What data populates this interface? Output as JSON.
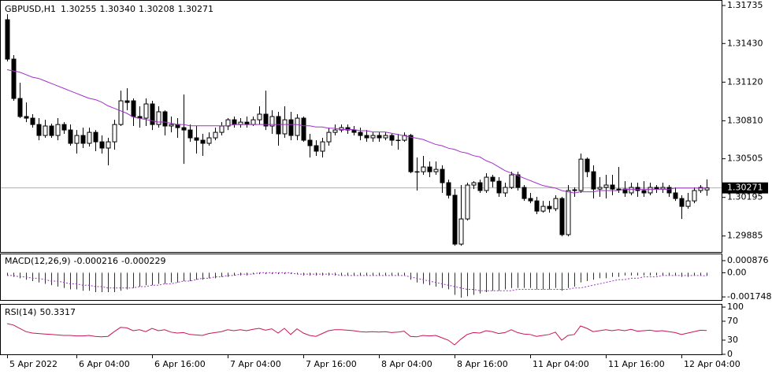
{
  "chart_data": {
    "type": "candlestick",
    "symbol": "GBPUSD,H1",
    "ohlc_labels": [
      "1.30255",
      "1.30340",
      "1.30208",
      "1.30271"
    ],
    "bull_color": "#ffffff",
    "bear_color": "#000000",
    "ma_color": "#a030c8",
    "ylim": [
      1.29757,
      1.31773
    ],
    "yticks": [
      1.31735,
      {
        "value": 1.3143,
        "label": "1.31430"
      },
      {
        "value": 1.3112,
        "label": "1.31120"
      },
      {
        "value": 1.3081,
        "label": "1.30810"
      },
      1.30505,
      1.30195,
      1.29885
    ],
    "xticks": [
      {
        "value": 0,
        "label": "5 Apr 2022"
      },
      {
        "value": 11,
        "label": "6 Apr 04:00"
      },
      {
        "value": 23,
        "label": "6 Apr 16:00"
      },
      {
        "value": 35,
        "label": "7 Apr 04:00"
      },
      {
        "value": 47,
        "label": "7 Apr 16:00"
      },
      {
        "value": 59,
        "label": "8 Apr 04:00"
      },
      {
        "value": 71,
        "label": "8 Apr 16:00"
      },
      {
        "value": 83,
        "label": "11 Apr 04:00"
      },
      {
        "value": 95,
        "label": "11 Apr 16:00"
      },
      {
        "value": 107,
        "label": "12 Apr 04:00"
      }
    ],
    "candles": [
      [
        1.31621,
        1.31665,
        1.31286,
        1.31305
      ],
      [
        1.31305,
        1.31337,
        1.3097,
        1.30989
      ],
      [
        1.30989,
        1.31115,
        1.30831,
        1.30844
      ],
      [
        1.30844,
        1.30957,
        1.30799,
        1.30831
      ],
      [
        1.30831,
        1.30863,
        1.30755,
        1.3078
      ],
      [
        1.3078,
        1.30831,
        1.30654,
        1.30692
      ],
      [
        1.30692,
        1.30818,
        1.30673,
        1.30768
      ],
      [
        1.30768,
        1.30787,
        1.30673,
        1.30692
      ],
      [
        1.30692,
        1.30831,
        1.30654,
        1.3078
      ],
      [
        1.3078,
        1.30799,
        1.30705,
        1.30736
      ],
      [
        1.30736,
        1.3078,
        1.3061,
        1.30629
      ],
      [
        1.30629,
        1.30736,
        1.30547,
        1.30692
      ],
      [
        1.30692,
        1.30755,
        1.30591,
        1.30629
      ],
      [
        1.30629,
        1.30755,
        1.30603,
        1.30717
      ],
      [
        1.30717,
        1.30736,
        1.30566,
        1.30641
      ],
      [
        1.30641,
        1.30692,
        1.30547,
        1.30591
      ],
      [
        1.30591,
        1.30673,
        1.30452,
        1.30641
      ],
      [
        1.30641,
        1.30818,
        1.30578,
        1.3078
      ],
      [
        1.3078,
        1.31052,
        1.30768,
        1.3097
      ],
      [
        1.3097,
        1.31071,
        1.30894,
        1.30957
      ],
      [
        1.3097,
        1.30989,
        1.30768,
        1.30844
      ],
      [
        1.30844,
        1.30926,
        1.30755,
        1.30831
      ],
      [
        1.30831,
        1.30989,
        1.30768,
        1.30945
      ],
      [
        1.30945,
        1.3097,
        1.30736,
        1.3078
      ],
      [
        1.3078,
        1.30926,
        1.30755,
        1.30882
      ],
      [
        1.30882,
        1.30894,
        1.30692,
        1.30768
      ],
      [
        1.30768,
        1.30844,
        1.30717,
        1.3078
      ],
      [
        1.3078,
        1.30831,
        1.30673,
        1.30755
      ],
      [
        1.30755,
        1.31021,
        1.30464,
        1.30736
      ],
      [
        1.30736,
        1.3078,
        1.30641,
        1.30673
      ],
      [
        1.30673,
        1.30768,
        1.30547,
        1.30654
      ],
      [
        1.30654,
        1.30705,
        1.30528,
        1.30629
      ],
      [
        1.30629,
        1.30717,
        1.3061,
        1.30673
      ],
      [
        1.30673,
        1.30755,
        1.30654,
        1.30717
      ],
      [
        1.30717,
        1.30799,
        1.30692,
        1.30768
      ],
      [
        1.30768,
        1.30831,
        1.30736,
        1.30818
      ],
      [
        1.30818,
        1.30844,
        1.30755,
        1.3078
      ],
      [
        1.3078,
        1.30831,
        1.30755,
        1.30799
      ],
      [
        1.30799,
        1.30844,
        1.30755,
        1.3078
      ],
      [
        1.3078,
        1.30844,
        1.30768,
        1.30818
      ],
      [
        1.30818,
        1.30926,
        1.3078,
        1.30863
      ],
      [
        1.30863,
        1.31052,
        1.30736,
        1.30768
      ],
      [
        1.30768,
        1.30894,
        1.30705,
        1.30844
      ],
      [
        1.30844,
        1.30882,
        1.3061,
        1.30705
      ],
      [
        1.30705,
        1.30926,
        1.30673,
        1.30818
      ],
      [
        1.30818,
        1.30882,
        1.30654,
        1.30692
      ],
      [
        1.30692,
        1.30863,
        1.30654,
        1.30831
      ],
      [
        1.30831,
        1.30844,
        1.30641,
        1.30654
      ],
      [
        1.30654,
        1.30705,
        1.30515,
        1.3061
      ],
      [
        1.3061,
        1.30654,
        1.30528,
        1.30566
      ],
      [
        1.30566,
        1.30673,
        1.30515,
        1.30641
      ],
      [
        1.30641,
        1.30755,
        1.3061,
        1.30717
      ],
      [
        1.30717,
        1.3078,
        1.30692,
        1.30736
      ],
      [
        1.30736,
        1.3078,
        1.30717,
        1.30755
      ],
      [
        1.30755,
        1.3078,
        1.30705,
        1.30736
      ],
      [
        1.30736,
        1.30768,
        1.30692,
        1.30717
      ],
      [
        1.30717,
        1.30755,
        1.30654,
        1.30692
      ],
      [
        1.30692,
        1.30736,
        1.30641,
        1.30673
      ],
      [
        1.30673,
        1.30717,
        1.30641,
        1.30692
      ],
      [
        1.30692,
        1.30717,
        1.30641,
        1.30673
      ],
      [
        1.30673,
        1.30717,
        1.30654,
        1.30692
      ],
      [
        1.30692,
        1.30705,
        1.3061,
        1.30654
      ],
      [
        1.30654,
        1.30705,
        1.30578,
        1.30654
      ],
      [
        1.30654,
        1.30717,
        1.30641,
        1.30692
      ],
      [
        1.30692,
        1.30705,
        1.30389,
        1.30401
      ],
      [
        1.30401,
        1.30515,
        1.3025,
        1.30401
      ],
      [
        1.30401,
        1.30528,
        1.30376,
        1.30439
      ],
      [
        1.30439,
        1.30483,
        1.30357,
        1.30401
      ],
      [
        1.30401,
        1.30483,
        1.30376,
        1.3042
      ],
      [
        1.3042,
        1.30452,
        1.30231,
        1.30313
      ],
      [
        1.30313,
        1.30338,
        1.30186,
        1.30212
      ],
      [
        1.30212,
        1.30262,
        1.29807,
        1.2982
      ],
      [
        1.2982,
        1.30294,
        1.29807,
        1.30022
      ],
      [
        1.30022,
        1.30313,
        1.30009,
        1.30294
      ],
      [
        1.30294,
        1.30325,
        1.30262,
        1.30313
      ],
      [
        1.30313,
        1.30338,
        1.30231,
        1.3025
      ],
      [
        1.3025,
        1.30389,
        1.30231,
        1.30357
      ],
      [
        1.30357,
        1.30376,
        1.30275,
        1.30325
      ],
      [
        1.30325,
        1.30357,
        1.30199,
        1.30231
      ],
      [
        1.30231,
        1.30313,
        1.30199,
        1.30275
      ],
      [
        1.30275,
        1.30401,
        1.30262,
        1.30376
      ],
      [
        1.30376,
        1.30401,
        1.3025,
        1.30275
      ],
      [
        1.30275,
        1.30294,
        1.30167,
        1.30186
      ],
      [
        1.30186,
        1.30231,
        1.30148,
        1.30167
      ],
      [
        1.30167,
        1.30199,
        1.3006,
        1.30085
      ],
      [
        1.30085,
        1.30167,
        1.30073,
        1.30123
      ],
      [
        1.30123,
        1.30167,
        1.30073,
        1.30104
      ],
      [
        1.30104,
        1.30212,
        1.30085,
        1.30186
      ],
      [
        1.30186,
        1.30199,
        1.29883,
        1.29896
      ],
      [
        1.29896,
        1.30294,
        1.29883,
        1.3025
      ],
      [
        1.3025,
        1.30275,
        1.30199,
        1.30256
      ],
      [
        1.3025,
        1.30547,
        1.30231,
        1.30502
      ],
      [
        1.30502,
        1.30515,
        1.30357,
        1.30401
      ],
      [
        1.30401,
        1.30452,
        1.30186,
        1.30262
      ],
      [
        1.30262,
        1.30357,
        1.30199,
        1.30275
      ],
      [
        1.30275,
        1.30376,
        1.30186,
        1.30294
      ],
      [
        1.30294,
        1.30376,
        1.30212,
        1.30262
      ],
      [
        1.30262,
        1.30439,
        1.30231,
        1.30256
      ],
      [
        1.30262,
        1.30325,
        1.30199,
        1.30231
      ],
      [
        1.30231,
        1.30313,
        1.30212,
        1.30275
      ],
      [
        1.30275,
        1.30313,
        1.30199,
        1.3025
      ],
      [
        1.3025,
        1.30325,
        1.30199,
        1.30231
      ],
      [
        1.30231,
        1.30313,
        1.30212,
        1.30275
      ],
      [
        1.30275,
        1.30294,
        1.30231,
        1.30262
      ],
      [
        1.30262,
        1.30313,
        1.30231,
        1.30275
      ],
      [
        1.30275,
        1.30294,
        1.30199,
        1.30231
      ],
      [
        1.30231,
        1.30275,
        1.30167,
        1.30186
      ],
      [
        1.30186,
        1.30212,
        1.30022,
        1.30123
      ],
      [
        1.30123,
        1.30231,
        1.30104,
        1.30167
      ],
      [
        1.30167,
        1.30275,
        1.30148,
        1.3025
      ],
      [
        1.3025,
        1.30294,
        1.30231,
        1.30275
      ],
      [
        1.30255,
        1.3034,
        1.30208,
        1.30271
      ]
    ],
    "ma": [
      1.3122,
      1.3121,
      1.312,
      1.3118,
      1.3116,
      1.3115,
      1.3113,
      1.3111,
      1.3109,
      1.3107,
      1.3105,
      1.3103,
      1.3101,
      1.3099,
      1.3098,
      1.3096,
      1.3093,
      1.3091,
      1.3089,
      1.3087,
      1.3084,
      1.3083,
      1.3082,
      1.3081,
      1.308,
      1.308,
      1.3079,
      1.3078,
      1.3078,
      1.3077,
      1.3077,
      1.3077,
      1.3077,
      1.3077,
      1.3077,
      1.3077,
      1.3078,
      1.3078,
      1.3078,
      1.3078,
      1.3078,
      1.3078,
      1.3078,
      1.3078,
      1.3078,
      1.3078,
      1.3078,
      1.3077,
      1.3077,
      1.3076,
      1.3076,
      1.3075,
      1.3075,
      1.3074,
      1.3074,
      1.3074,
      1.3073,
      1.3073,
      1.3072,
      1.3072,
      1.3072,
      1.3071,
      1.307,
      1.3069,
      1.3068,
      1.3067,
      1.3066,
      1.3064,
      1.3062,
      1.3061,
      1.3059,
      1.3058,
      1.3056,
      1.3055,
      1.3053,
      1.3052,
      1.3049,
      1.3047,
      1.3044,
      1.3041,
      1.3039,
      1.3037,
      1.3035,
      1.3033,
      1.3031,
      1.3029,
      1.3028,
      1.3027,
      1.3025,
      1.3024,
      1.3023,
      1.3024,
      1.3024,
      1.3024,
      1.3025,
      1.3025,
      1.3025,
      1.3025,
      1.3026,
      1.3026,
      1.3026,
      1.3026,
      1.3026,
      1.3026,
      1.3026,
      1.3026,
      1.3027,
      1.3027,
      1.3027,
      1.3027,
      1.3027,
      1.3027
    ],
    "macd": {
      "title": "MACD(12,26,9)",
      "histogram_color": "#303030",
      "signal_color": "#a030c8",
      "ylim": [
        -0.00197,
        0.00139
      ],
      "yticks": [
        0.000876,
        {
          "value": 0,
          "label": "0.00"
        },
        -0.001748
      ],
      "histogram": [
        -0.0002,
        -0.0003,
        -0.0004,
        -0.0005,
        -0.0006,
        -0.0007,
        -0.0008,
        -0.0009,
        -0.001,
        -0.0011,
        -0.0012,
        -0.0012,
        -0.0013,
        -0.0013,
        -0.0014,
        -0.0014,
        -0.0014,
        -0.0014,
        -0.0013,
        -0.0012,
        -0.0011,
        -0.001,
        -0.0009,
        -0.0009,
        -0.0008,
        -0.0008,
        -0.0007,
        -0.0007,
        -0.0006,
        -0.0006,
        -0.0005,
        -0.0005,
        -0.0004,
        -0.0004,
        -0.0003,
        -0.0003,
        -0.0002,
        -0.0002,
        -0.0002,
        -0.0001,
        -0.0001,
        -0.0001,
        -0.0001,
        -0.0001,
        -0.0001,
        -0.0001,
        -0.0001,
        -0.0002,
        -0.0002,
        -0.0002,
        -0.0002,
        -0.0002,
        -0.0002,
        -0.0002,
        -0.0002,
        -0.0002,
        -0.0002,
        -0.0002,
        -0.0002,
        -0.0002,
        -0.0002,
        -0.0002,
        -0.0002,
        -0.0002,
        -0.0005,
        -0.0007,
        -0.0008,
        -0.0009,
        -0.001,
        -0.0011,
        -0.0012,
        -0.0016,
        -0.0018,
        -0.0017,
        -0.0016,
        -0.0015,
        -0.0014,
        -0.0013,
        -0.0013,
        -0.0012,
        -0.0011,
        -0.0011,
        -0.0011,
        -0.0011,
        -0.0012,
        -0.0012,
        -0.0012,
        -0.0011,
        -0.0013,
        -0.0011,
        -0.001,
        -0.0007,
        -0.0006,
        -0.0005,
        -0.0004,
        -0.0004,
        -0.0003,
        -0.0003,
        -0.0002,
        -0.0002,
        -0.0002,
        -0.0002,
        -0.0002,
        -0.0002,
        -0.0002,
        -0.0002,
        -0.0002,
        -0.0003,
        -0.0003,
        -0.0002,
        -0.0002,
        -0.000216
      ],
      "signal": [
        -0.0002,
        -0.0002,
        -0.0003,
        -0.0003,
        -0.0004,
        -0.0004,
        -0.0005,
        -0.0006,
        -0.0006,
        -0.0007,
        -0.0008,
        -0.0008,
        -0.0009,
        -0.0009,
        -0.001,
        -0.001,
        -0.0011,
        -0.0011,
        -0.0011,
        -0.0011,
        -0.0011,
        -0.001,
        -0.001,
        -0.0009,
        -0.0009,
        -0.0008,
        -0.0008,
        -0.0007,
        -0.0006,
        -0.0006,
        -0.0005,
        -0.0004,
        -0.0004,
        -0.0003,
        -0.0003,
        -0.0002,
        -0.0002,
        -0.0001,
        -0.0001,
        -0.0001,
        0,
        0,
        0,
        0,
        0,
        0,
        -0.0001,
        -0.0001,
        -0.0001,
        -0.0001,
        -0.0001,
        -0.0001,
        -0.0001,
        -0.0002,
        -0.0002,
        -0.0002,
        -0.0002,
        -0.0002,
        -0.0002,
        -0.0002,
        -0.0002,
        -0.0002,
        -0.0002,
        -0.0002,
        -0.0003,
        -0.0004,
        -0.0005,
        -0.0006,
        -0.0007,
        -0.0008,
        -0.0009,
        -0.001,
        -0.0011,
        -0.0012,
        -0.0012,
        -0.0013,
        -0.0013,
        -0.0013,
        -0.0013,
        -0.0013,
        -0.0013,
        -0.0012,
        -0.0012,
        -0.0012,
        -0.0012,
        -0.0012,
        -0.0012,
        -0.0012,
        -0.0012,
        -0.0012,
        -0.0011,
        -0.0011,
        -0.001,
        -0.0009,
        -0.0008,
        -0.0007,
        -0.0006,
        -0.0005,
        -0.0005,
        -0.0004,
        -0.0004,
        -0.0003,
        -0.0003,
        -0.0003,
        -0.0002,
        -0.0002,
        -0.0002,
        -0.0002,
        -0.0002,
        -0.0002,
        -0.0002,
        -0.000229
      ]
    },
    "rsi": {
      "title": "RSI(14)",
      "color": "#c8145a",
      "ylim": [
        0,
        106.7
      ],
      "yticks": [
        100,
        70,
        30,
        0
      ],
      "values": [
        65,
        62,
        55,
        48,
        45,
        44,
        43,
        42,
        41,
        40,
        40,
        39,
        39,
        40,
        38,
        37,
        38,
        48,
        57,
        56,
        50,
        52,
        48,
        55,
        50,
        52,
        47,
        45,
        46,
        42,
        41,
        40,
        44,
        46,
        48,
        52,
        50,
        52,
        50,
        53,
        55,
        51,
        54,
        45,
        55,
        42,
        54,
        45,
        40,
        38,
        44,
        50,
        52,
        52,
        51,
        50,
        48,
        47,
        48,
        47,
        48,
        46,
        47,
        49,
        38,
        37,
        40,
        39,
        40,
        35,
        30,
        20,
        32,
        42,
        46,
        45,
        50,
        48,
        44,
        46,
        52,
        46,
        43,
        42,
        38,
        40,
        42,
        47,
        30,
        40,
        42,
        60,
        55,
        48,
        50,
        52,
        50,
        52,
        50,
        53,
        49,
        50,
        51,
        49,
        50,
        48,
        46,
        42,
        45,
        48,
        51,
        50.3317
      ]
    }
  }
}
